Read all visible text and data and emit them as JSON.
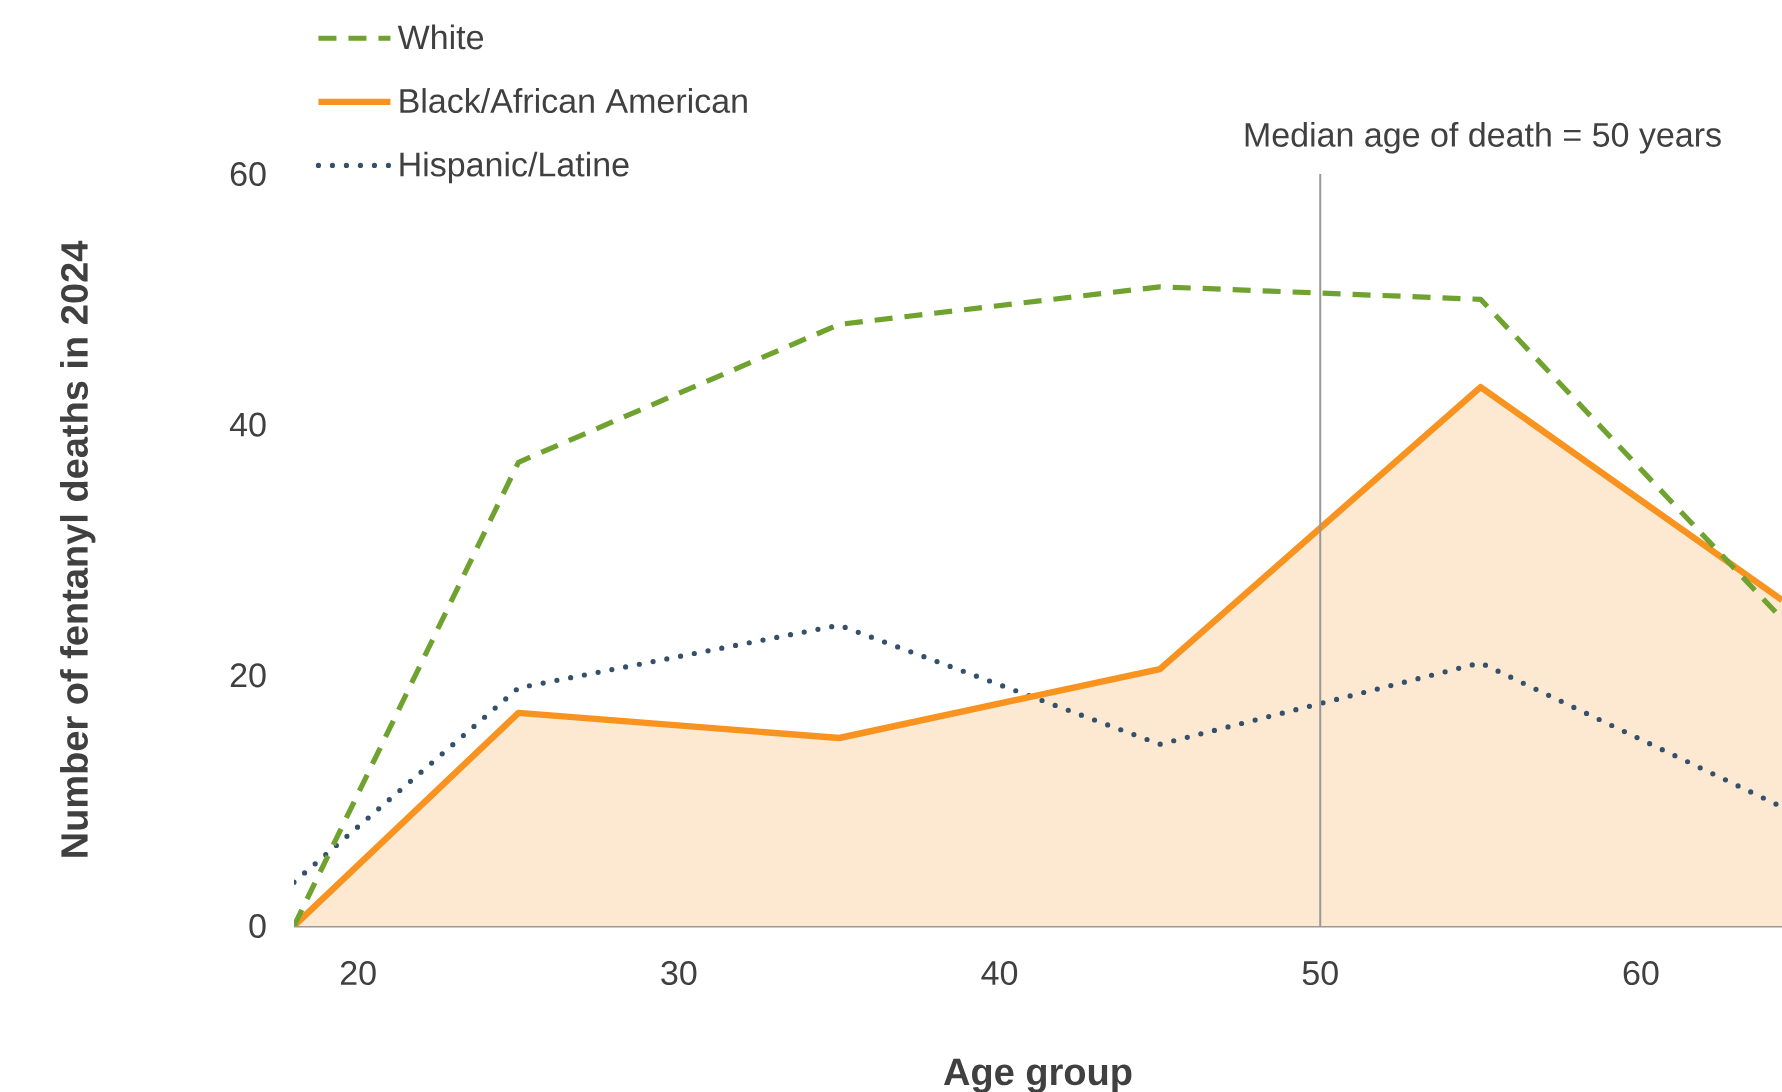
{
  "chart_data": {
    "type": "line",
    "xlabel": "Age group",
    "ylabel": "Number of fentanyl deaths in 2024",
    "x": [
      18,
      25,
      35,
      45,
      55,
      64.4
    ],
    "series": [
      {
        "name": "White",
        "color": "#6fa22e",
        "line_style": "dashed",
        "values": [
          0,
          37,
          48,
          51,
          50,
          24.5
        ]
      },
      {
        "name": "Black/African American",
        "color": "#f7931e",
        "type": "area",
        "values": [
          0,
          17,
          15,
          20.5,
          43,
          26
        ]
      },
      {
        "name": "Hispanic/Latine",
        "color": "#34506b",
        "line_style": "dotted",
        "values": [
          3.5,
          19,
          24,
          14.5,
          21,
          9.5
        ]
      }
    ],
    "xlim": [
      18,
      64.4
    ],
    "ylim": [
      0,
      60
    ],
    "xticks": [
      20,
      30,
      40,
      50,
      60
    ],
    "yticks": [
      0,
      20,
      40,
      60
    ],
    "ref_lines": [
      {
        "axis": "x",
        "value": 50,
        "label": "Median age of death = 50 years",
        "color": "#999999"
      }
    ],
    "grid": false,
    "legend": "top left",
    "marker": "none"
  }
}
